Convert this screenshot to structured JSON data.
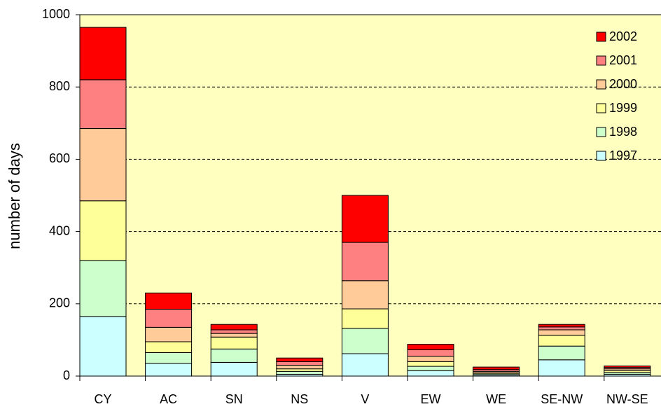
{
  "chart_data": {
    "type": "bar",
    "stacked": true,
    "y_label": "number of days",
    "categories": [
      "CY",
      "AC",
      "SN",
      "NS",
      "V",
      "EW",
      "WE",
      "SE-NW",
      "NW-SE"
    ],
    "series": [
      {
        "name": "1997",
        "color": "#ccffff",
        "values": [
          165,
          35,
          38,
          5,
          62,
          15,
          3,
          45,
          5
        ]
      },
      {
        "name": "1998",
        "color": "#ccffcc",
        "values": [
          155,
          30,
          37,
          8,
          70,
          12,
          3,
          38,
          5
        ]
      },
      {
        "name": "1999",
        "color": "#ffff99",
        "values": [
          165,
          30,
          33,
          7,
          54,
          13,
          3,
          30,
          5
        ]
      },
      {
        "name": "2000",
        "color": "#ffcc99",
        "values": [
          200,
          40,
          10,
          10,
          78,
          15,
          4,
          15,
          5
        ]
      },
      {
        "name": "2001",
        "color": "#ff8080",
        "values": [
          135,
          50,
          10,
          10,
          106,
          18,
          5,
          8,
          4
        ]
      },
      {
        "name": "2002",
        "color": "#ff0000",
        "values": [
          145,
          45,
          15,
          10,
          130,
          15,
          7,
          7,
          4
        ]
      }
    ],
    "ylim": [
      0,
      1000
    ],
    "yticks": [
      0,
      200,
      400,
      600,
      800,
      1000
    ],
    "grid": true,
    "background": "#ffffc0",
    "legend_position": "upper right"
  }
}
